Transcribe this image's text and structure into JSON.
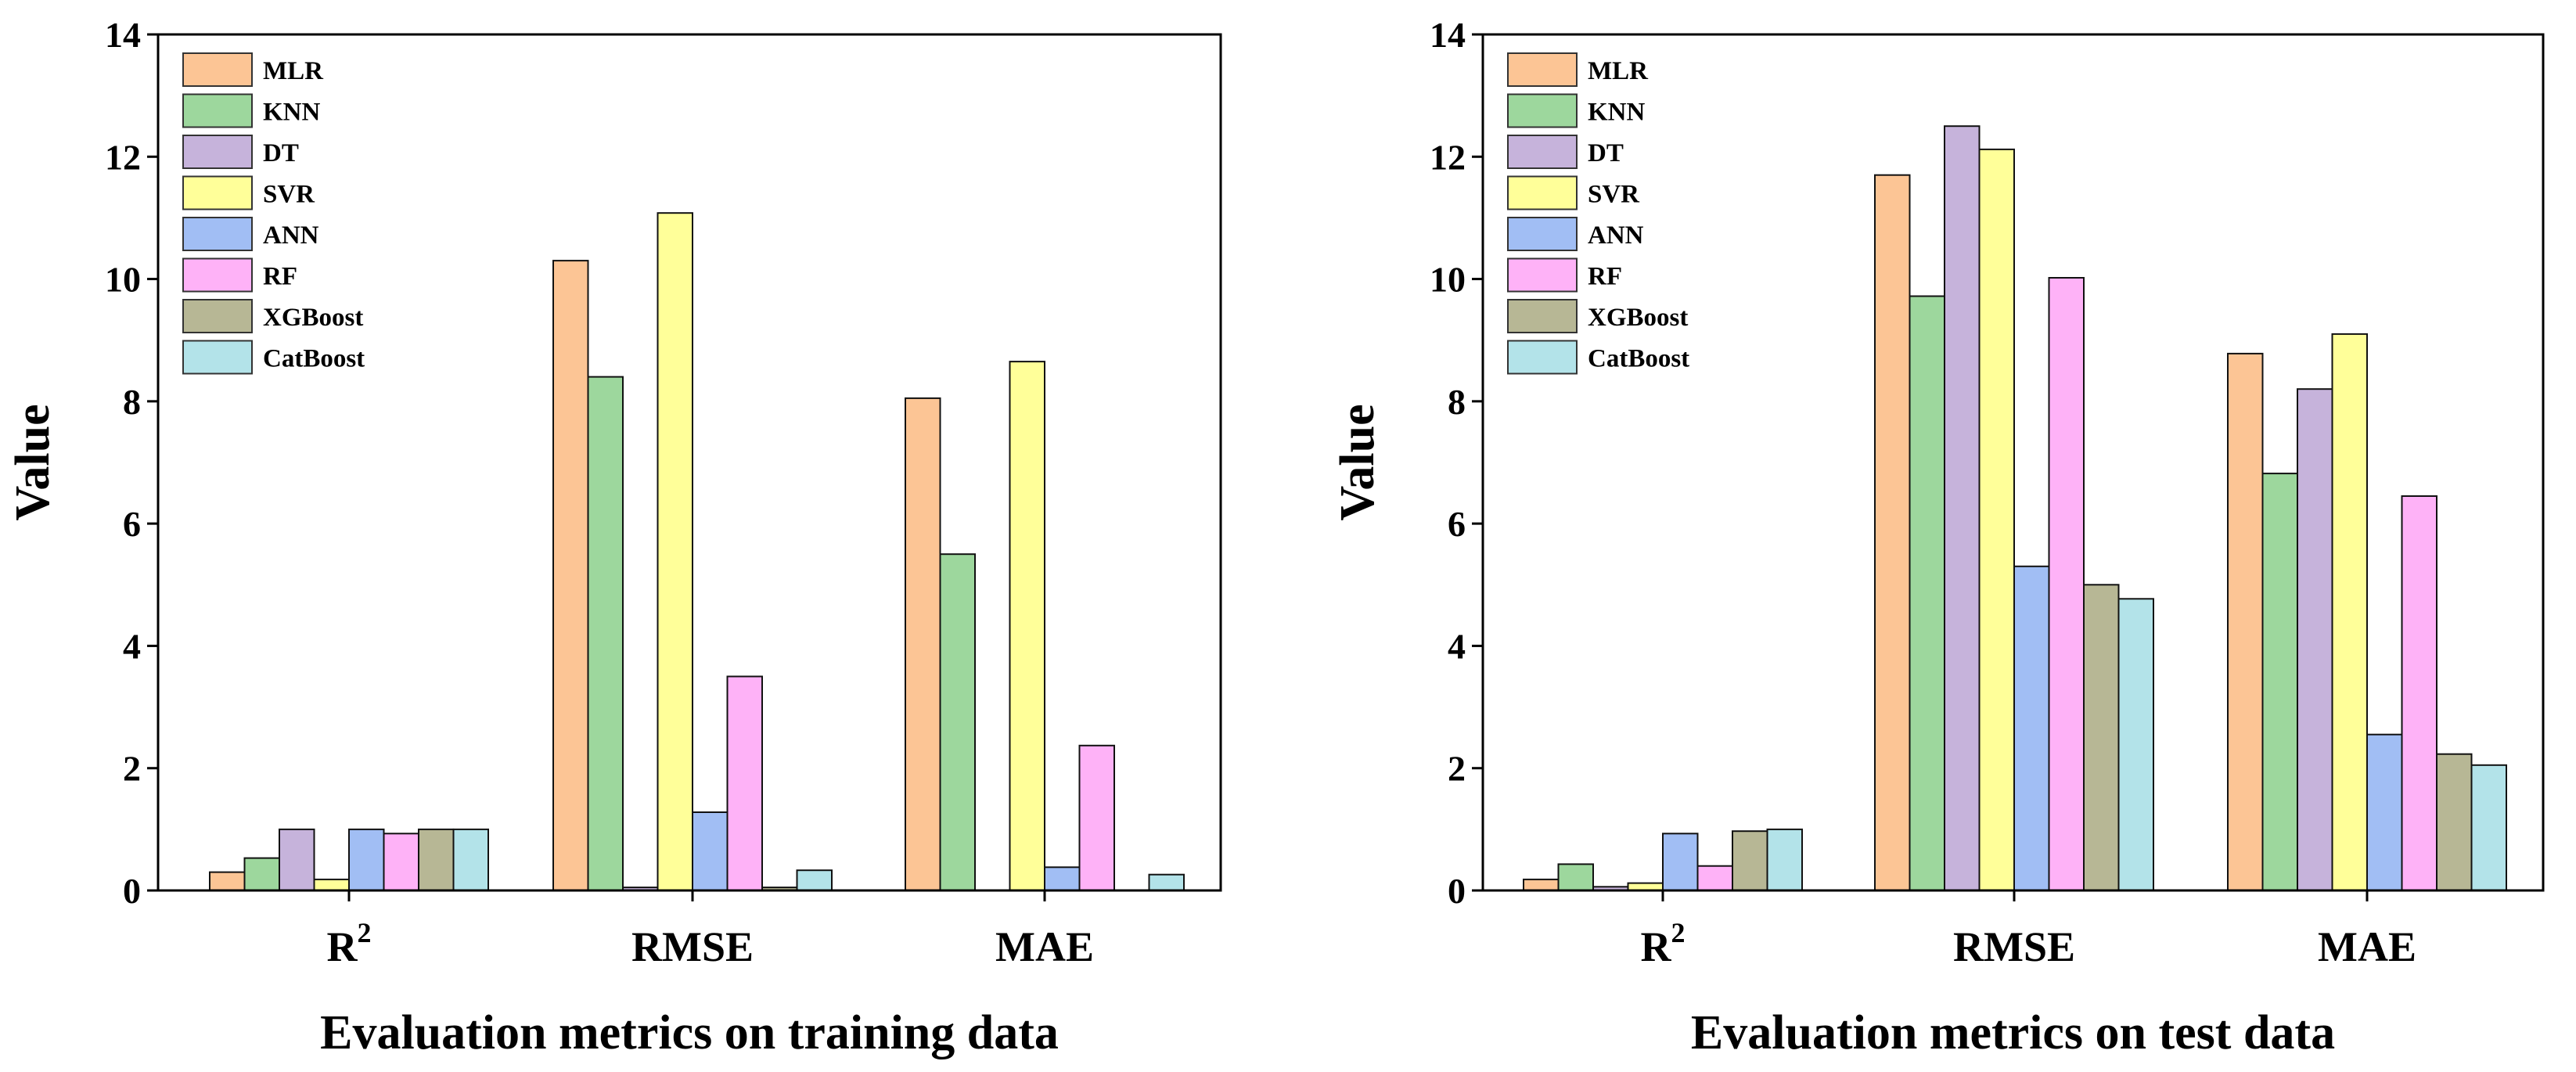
{
  "chart_data": [
    {
      "type": "bar",
      "title": "",
      "xlabel": "Evaluation metrics on training data",
      "ylabel": "Value",
      "ylim": [
        0,
        14
      ],
      "yticks": [
        0,
        2,
        4,
        6,
        8,
        10,
        12,
        14
      ],
      "categories": [
        {
          "base": "R",
          "sup": "2"
        },
        {
          "base": "RMSE",
          "sup": ""
        },
        {
          "base": "MAE",
          "sup": ""
        }
      ],
      "legend_position": "top-left",
      "series": [
        {
          "name": "MLR",
          "color": "#fcc595",
          "values": [
            0.3,
            10.3,
            8.05
          ]
        },
        {
          "name": "KNN",
          "color": "#9dd79d",
          "values": [
            0.53,
            8.4,
            5.5
          ]
        },
        {
          "name": "DT",
          "color": "#c6b3db",
          "values": [
            1.0,
            0.05,
            0.0
          ]
        },
        {
          "name": "SVR",
          "color": "#ffff99",
          "values": [
            0.18,
            11.08,
            8.65
          ]
        },
        {
          "name": "ANN",
          "color": "#a1bef4",
          "values": [
            1.0,
            1.28,
            0.38
          ]
        },
        {
          "name": "RF",
          "color": "#feb2f7",
          "values": [
            0.93,
            3.5,
            2.37
          ]
        },
        {
          "name": "XGBoost",
          "color": "#b7b795",
          "values": [
            1.0,
            0.05,
            0.0
          ]
        },
        {
          "name": "CatBoost",
          "color": "#b3e3e9",
          "values": [
            1.0,
            0.33,
            0.26
          ]
        }
      ]
    },
    {
      "type": "bar",
      "title": "",
      "xlabel": "Evaluation metrics on test data",
      "ylabel": "Value",
      "ylim": [
        0,
        14
      ],
      "yticks": [
        0,
        2,
        4,
        6,
        8,
        10,
        12,
        14
      ],
      "categories": [
        {
          "base": "R",
          "sup": "2"
        },
        {
          "base": "RMSE",
          "sup": ""
        },
        {
          "base": "MAE",
          "sup": ""
        }
      ],
      "legend_position": "top-left",
      "series": [
        {
          "name": "MLR",
          "color": "#fcc595",
          "values": [
            0.18,
            11.7,
            8.78
          ]
        },
        {
          "name": "KNN",
          "color": "#9dd79d",
          "values": [
            0.43,
            9.72,
            6.82
          ]
        },
        {
          "name": "DT",
          "color": "#c6b3db",
          "values": [
            0.06,
            12.5,
            8.2
          ]
        },
        {
          "name": "SVR",
          "color": "#ffff99",
          "values": [
            0.12,
            12.12,
            9.1
          ]
        },
        {
          "name": "ANN",
          "color": "#a1bef4",
          "values": [
            0.93,
            5.3,
            2.55
          ]
        },
        {
          "name": "RF",
          "color": "#feb2f7",
          "values": [
            0.4,
            10.02,
            6.45
          ]
        },
        {
          "name": "XGBoost",
          "color": "#b7b795",
          "values": [
            0.97,
            5.0,
            2.23
          ]
        },
        {
          "name": "CatBoost",
          "color": "#b3e3e9",
          "values": [
            1.0,
            4.77,
            2.05
          ]
        }
      ]
    }
  ]
}
